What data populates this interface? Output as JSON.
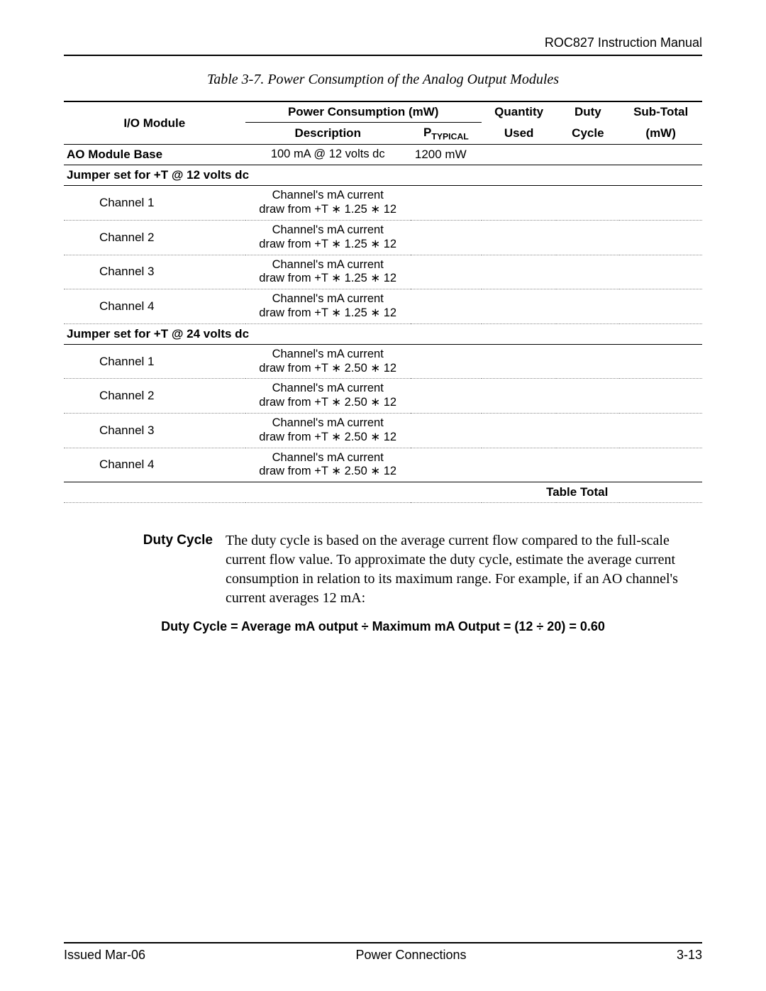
{
  "header": {
    "title": "ROC827 Instruction Manual"
  },
  "caption": "Table 3-7. Power Consumption of the Analog Output Modules",
  "columns": {
    "io_module": "I/O Module",
    "power_consumption": "Power Consumption (mW)",
    "description": "Description",
    "p_typical_prefix": "P",
    "p_typical_sub": "TYPICAL",
    "quantity_used_l1": "Quantity",
    "quantity_used_l2": "Used",
    "duty_cycle_l1": "Duty",
    "duty_cycle_l2": "Cycle",
    "sub_total_l1": "Sub-Total",
    "sub_total_l2": "(mW)"
  },
  "base_row": {
    "label": "AO Module Base",
    "description": "100 mA @ 12 volts dc",
    "p_typical": "1200 mW"
  },
  "sections": [
    {
      "title": "Jumper set for +T @ 12 volts dc",
      "channels": [
        {
          "name": "Channel 1",
          "desc_l1": "Channel's mA current",
          "desc_l2": "draw from +T ∗ 1.25 ∗ 12"
        },
        {
          "name": "Channel 2",
          "desc_l1": "Channel's mA current",
          "desc_l2": "draw from +T ∗ 1.25 ∗ 12"
        },
        {
          "name": "Channel 3",
          "desc_l1": "Channel's mA current",
          "desc_l2": "draw from +T ∗ 1.25 ∗ 12"
        },
        {
          "name": "Channel 4",
          "desc_l1": "Channel's mA current",
          "desc_l2": "draw from +T ∗ 1.25 ∗ 12"
        }
      ]
    },
    {
      "title": "Jumper set for +T @ 24 volts dc",
      "channels": [
        {
          "name": "Channel 1",
          "desc_l1": "Channel's mA current",
          "desc_l2": "draw from +T ∗ 2.50 ∗ 12"
        },
        {
          "name": "Channel 2",
          "desc_l1": "Channel's mA current",
          "desc_l2": "draw from +T ∗ 2.50 ∗ 12"
        },
        {
          "name": "Channel 3",
          "desc_l1": "Channel's mA current",
          "desc_l2": "draw from +T ∗ 2.50 ∗ 12"
        },
        {
          "name": "Channel 4",
          "desc_l1": "Channel's mA current",
          "desc_l2": "draw from +T ∗ 2.50 ∗ 12"
        }
      ]
    }
  ],
  "table_total_label": "Table Total",
  "body": {
    "label": "Duty Cycle",
    "text": "The duty cycle is based on the average current flow compared to the full-scale current flow value. To approximate the duty cycle, estimate the average current consumption in relation to its maximum range. For example, if an AO channel's current averages 12 mA:"
  },
  "formula": "Duty Cycle = Average mA output ÷ Maximum mA Output = (12 ÷ 20) = 0.60",
  "footer": {
    "left": "Issued Mar-06",
    "center": "Power Connections",
    "right": "3-13"
  },
  "styles": {
    "page_bg": "#ffffff",
    "text_color": "#000000",
    "rule_color": "#000000",
    "dotted_color": "#888888",
    "body_font": "Times New Roman",
    "ui_font": "Arial"
  }
}
